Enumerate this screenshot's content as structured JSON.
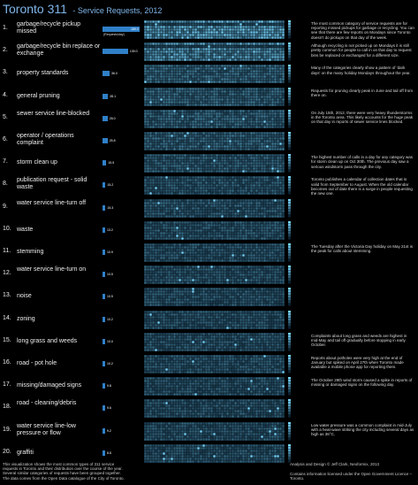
{
  "header": {
    "title": "Toronto 311",
    "subtitle": "- Service Requests, 2012"
  },
  "chart_data": {
    "type": "heatmap",
    "title": "Toronto 311 - Service Requests, 2012",
    "bar_axis_label": "(Requests/day)",
    "categories": [
      {
        "rank": "1.",
        "name": "garbage/recycle pickup missed",
        "per_day": "189.0",
        "value": 189.0
      },
      {
        "rank": "2.",
        "name": "garbage/recycle bin replace or exchange",
        "per_day": "130.0",
        "value": 130.0
      },
      {
        "rank": "3.",
        "name": "property standards",
        "per_day": "36.0",
        "value": 36.0
      },
      {
        "rank": "4.",
        "name": "general pruning",
        "per_day": "28.1",
        "value": 28.1
      },
      {
        "rank": "5.",
        "name": "sewer service line-blocked",
        "per_day": "26.0",
        "value": 26.0
      },
      {
        "rank": "6.",
        "name": "operator / operations complaint",
        "per_day": "25.8",
        "value": 25.8
      },
      {
        "rank": "7.",
        "name": "storm clean up",
        "per_day": "19.5",
        "value": 19.5
      },
      {
        "rank": "8.",
        "name": "publication request - solid waste",
        "per_day": "15.2",
        "value": 15.2
      },
      {
        "rank": "9.",
        "name": "water service line-turn off",
        "per_day": "15.3",
        "value": 15.3
      },
      {
        "rank": "10.",
        "name": "waste",
        "per_day": "13.2",
        "value": 13.2
      },
      {
        "rank": "11.",
        "name": "stemming",
        "per_day": "10.9",
        "value": 10.9
      },
      {
        "rank": "12.",
        "name": "water service line-turn on",
        "per_day": "10.5",
        "value": 10.5
      },
      {
        "rank": "13.",
        "name": "noise",
        "per_day": "10.5",
        "value": 10.5
      },
      {
        "rank": "14.",
        "name": "zoning",
        "per_day": "10.2",
        "value": 10.2
      },
      {
        "rank": "15.",
        "name": "long grass and weeds",
        "per_day": "10.0",
        "value": 10.0
      },
      {
        "rank": "16.",
        "name": "road - pot hole",
        "per_day": "10.2",
        "value": 10.2
      },
      {
        "rank": "17.",
        "name": "missing/damaged signs",
        "per_day": "9.8",
        "value": 9.8
      },
      {
        "rank": "18.",
        "name": "road - cleaning/debris",
        "per_day": "9.6",
        "value": 9.6
      },
      {
        "rank": "19.",
        "name": "water service line-low pressure or flow",
        "per_day": "9.2",
        "value": 9.2
      },
      {
        "rank": "20.",
        "name": "graffiti",
        "per_day": "8.8",
        "value": 8.8
      }
    ],
    "grid": {
      "weeks": 53,
      "days_per_week": 7
    }
  },
  "notes": [
    {
      "row": 0,
      "text": "The most common category of service requests are for reporting missed pickups for garbage or recycling. You can see that there are few reports on Mondays since Toronto doesn't do pickups on that day of the week."
    },
    {
      "row": 1,
      "text": "Although recycling is not picked up on Mondays it is still pretty common for people to call in on that day to request bins be replaced or exchanged for a different size."
    },
    {
      "row": 2,
      "text": "Many of the categories clearly show a pattern of 'dark days' on the many holiday Mondays throughout the year."
    },
    {
      "row": 3,
      "text": "Requests for pruning clearly peak in June and tail off from there on."
    },
    {
      "row": 4,
      "text": "On July 15th, 2012, there were very heavy thunderstorms in the Toronto area. This likely accounts for the huge peak on that day in reports of sewer service lines blocked."
    },
    {
      "row": 6,
      "text": "The highest number of calls in a day for any category was for storm clean up on Oct 30th. The previous day saw a serious windstorm pass through the city."
    },
    {
      "row": 7,
      "text": "Toronto publishes a calendar of collection dates that is valid from September to August. When the old calendar becomes out of date there is a surge in people requesting the new one."
    },
    {
      "row": 10,
      "text": "The Tuesday after the Victoria Day holiday on May 21st is the peak for calls about stemming."
    },
    {
      "row": 14,
      "text": "Complaints about long grass and weeds are highest in mid-May and tail off gradually before stopping in early October."
    },
    {
      "row": 15,
      "text": "Reports about potholes were very high at the end of January but spiked on April 27th when Toronto made available a mobile phone app for reporting them."
    },
    {
      "row": 16,
      "text": "The October 29th wind storm caused a spike in reports of missing or damaged signs on the following day."
    },
    {
      "row": 18,
      "text": "Low water pressure was a common complaint in mid-July with a heat-wave striking the city including several days as high as 36°C."
    }
  ],
  "footer": {
    "left": "This visualization shows the most common types of 311 service requests in Toronto and their distribution over the course of the year. Several similar categories of requests have been grouped together. The data comes from the Open Data catalogue of the City of Toronto.",
    "credit": "Analysis and Design © Jeff Clark, Neoformix, 2013",
    "license": "Contains information licensed under the Open Government Licence – Toronto."
  },
  "colors": {
    "accent": "#7fb6ea",
    "bar": "#2f80c8",
    "cell_high": "#6fd2ff",
    "cell_low": "#0b2130"
  }
}
